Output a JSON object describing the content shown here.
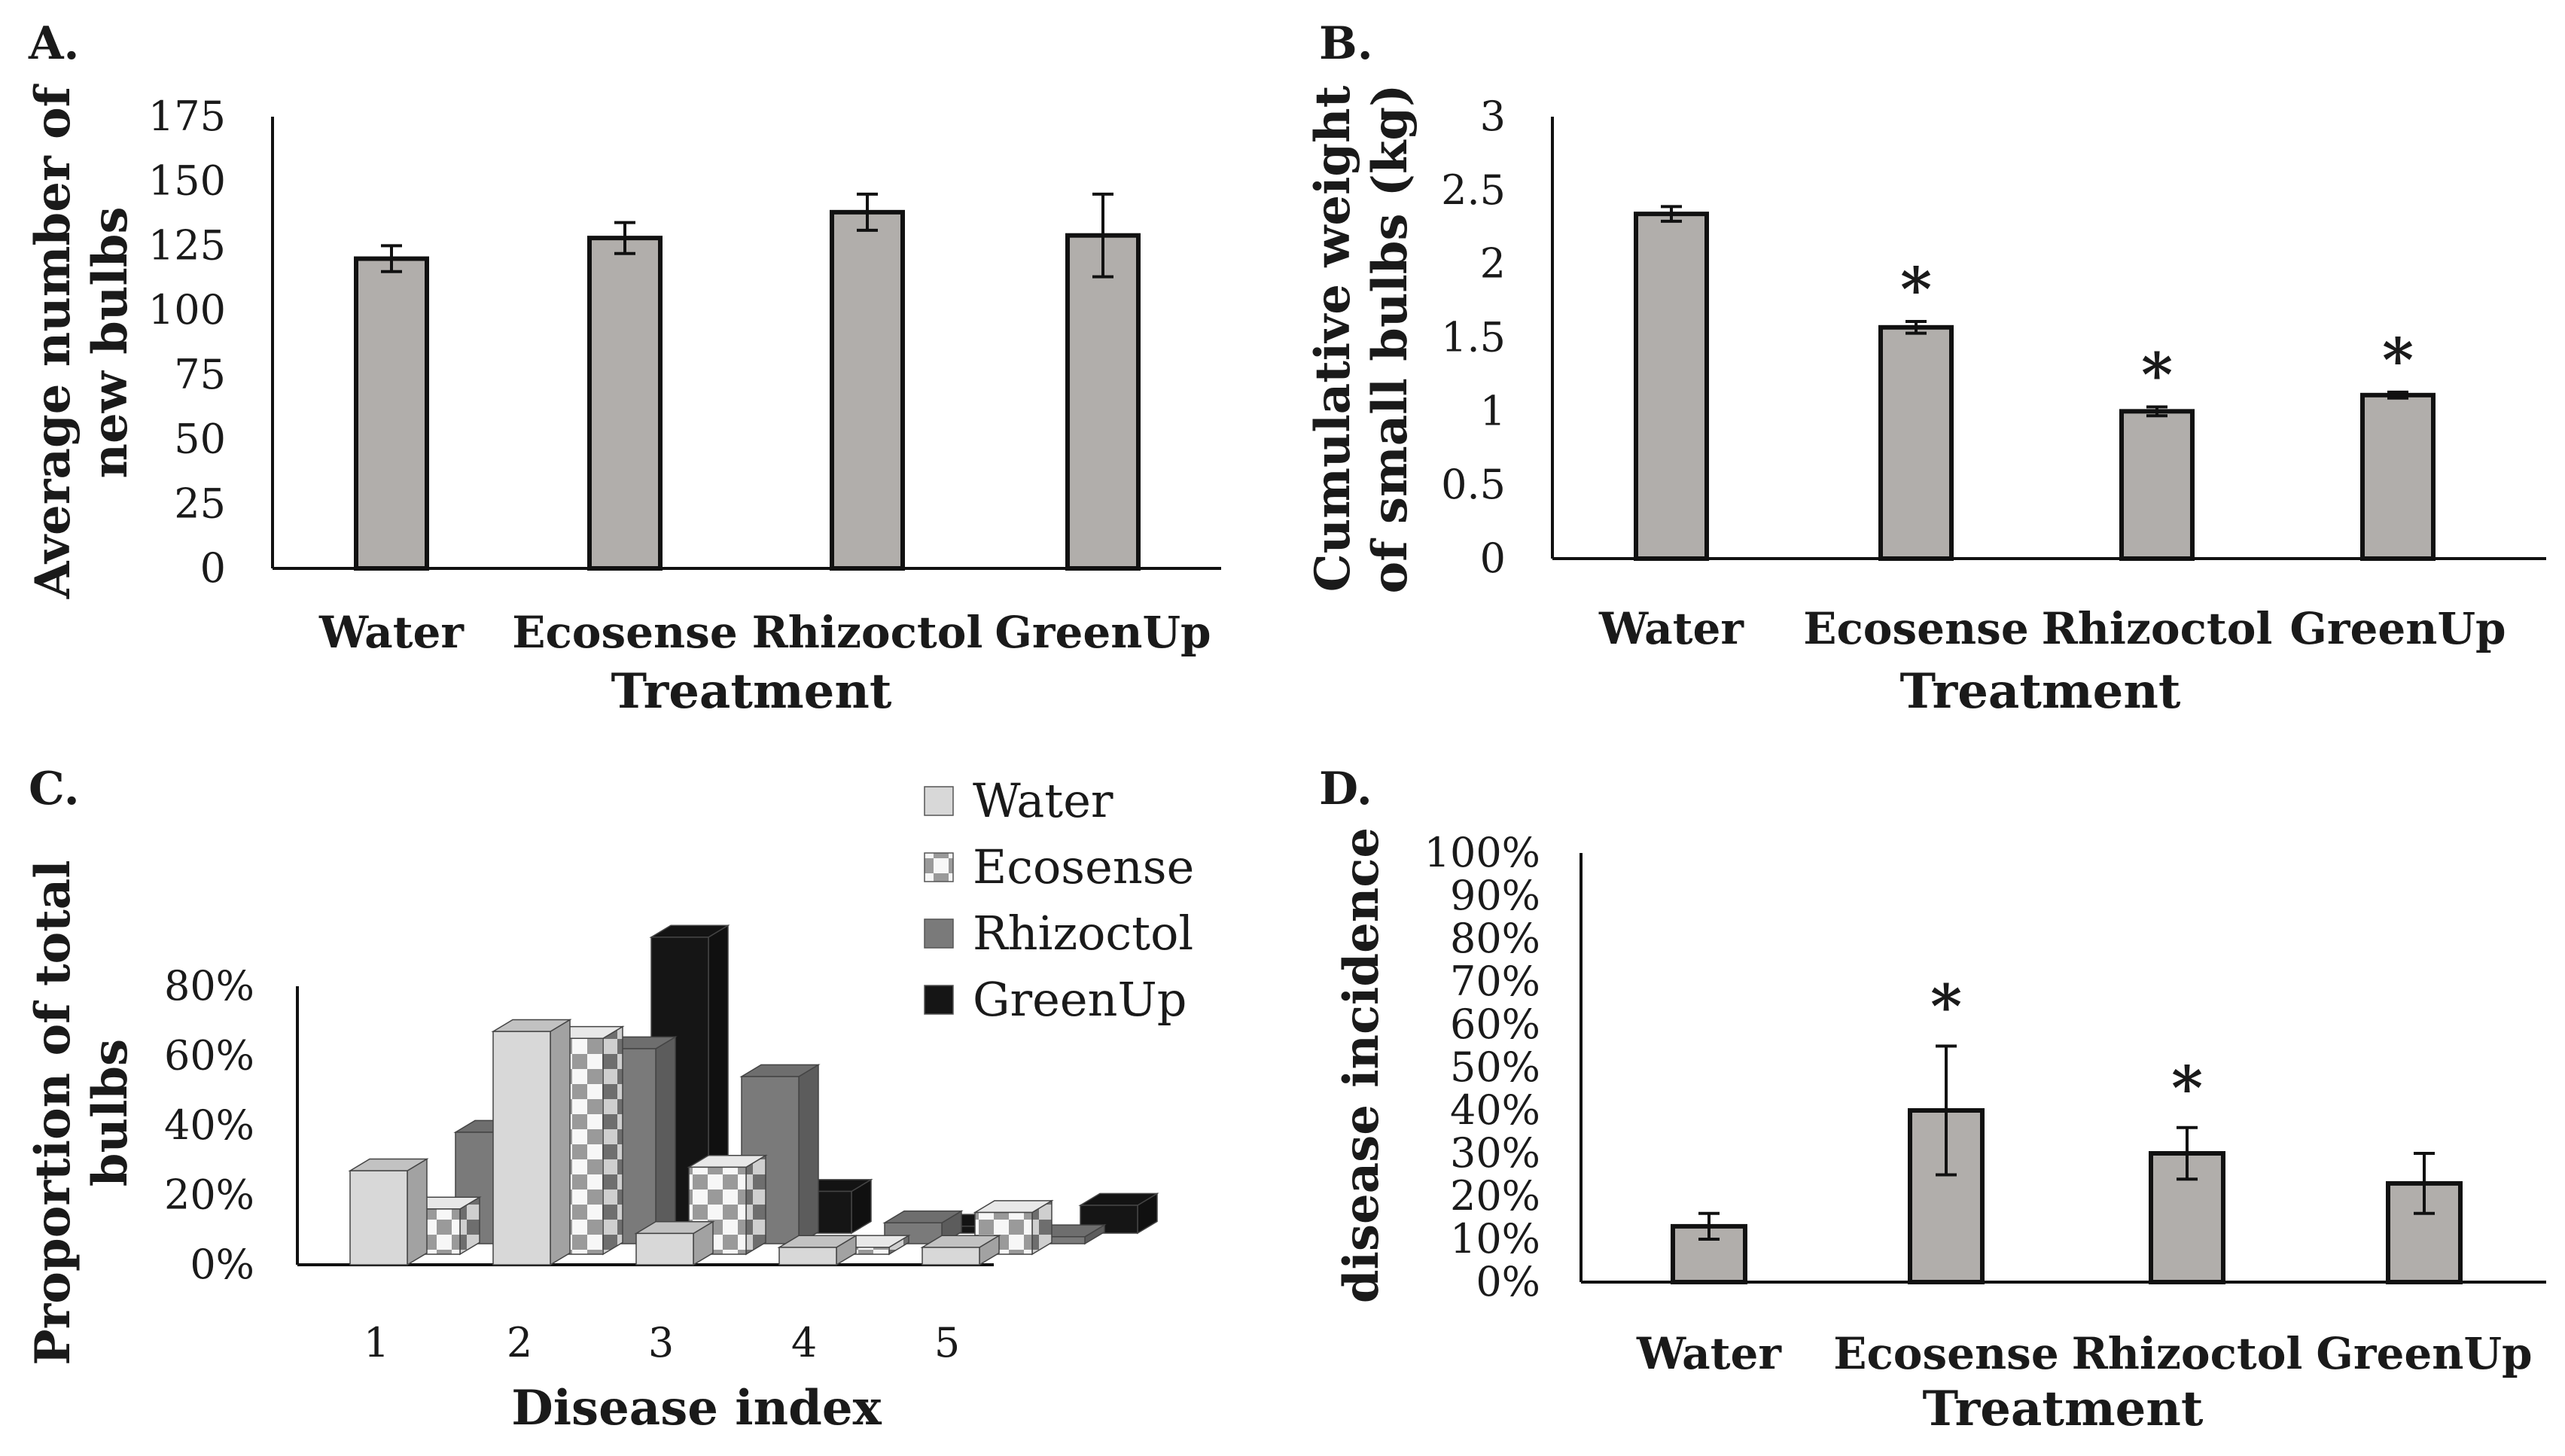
{
  "bar_fill": "#b1aeab",
  "bar_stroke": "#111111",
  "chart_data": [
    {
      "panel": "A.",
      "type": "bar",
      "title": "",
      "categories": [
        "Water",
        "Ecosense",
        "Rhizoctol",
        "GreenUp"
      ],
      "values": [
        120,
        128,
        138,
        129
      ],
      "errors": [
        5,
        6,
        7,
        16
      ],
      "significant": [
        false,
        false,
        false,
        false
      ],
      "xlabel": "Treatment",
      "ylabel_lines": [
        "Average number of",
        "new bulbs"
      ],
      "ylim": [
        0,
        175
      ],
      "yticks": [
        "0",
        "25",
        "50",
        "75",
        "100",
        "125",
        "150",
        "175"
      ],
      "grid": false,
      "legend": "none"
    },
    {
      "panel": "B.",
      "type": "bar",
      "title": "",
      "categories": [
        "Water",
        "Ecosense",
        "Rhizoctol",
        "GreenUp"
      ],
      "values": [
        2.34,
        1.57,
        1.0,
        1.11
      ],
      "errors": [
        0.05,
        0.04,
        0.03,
        0.02
      ],
      "significant": [
        false,
        true,
        true,
        true
      ],
      "star_label": "*",
      "xlabel": "Treatment",
      "ylabel_lines": [
        "Cumulative weight",
        "of small bulbs (kg)"
      ],
      "ylim": [
        0,
        3
      ],
      "yticks": [
        "0",
        "0.5",
        "1",
        "1.5",
        "2",
        "2.5",
        "3"
      ],
      "grid": false,
      "legend": "none"
    },
    {
      "panel": "C.",
      "type": "bar3d",
      "title": "",
      "categories": [
        "1",
        "2",
        "3",
        "4",
        "5"
      ],
      "series": [
        {
          "name": "Water",
          "values": [
            27,
            67,
            9,
            5,
            5
          ],
          "color": "#d8d8d8",
          "pattern": "solid"
        },
        {
          "name": "Ecosense",
          "values": [
            13,
            62,
            25,
            2,
            12
          ],
          "color": "#f4f4f4",
          "pattern": "checker"
        },
        {
          "name": "Rhizoctol",
          "values": [
            32,
            56,
            48,
            6,
            2
          ],
          "color": "#7a7a7a",
          "pattern": "solid"
        },
        {
          "name": "GreenUp",
          "values": [
            0,
            85,
            12,
            2,
            8
          ],
          "color": "#151515",
          "pattern": "solid"
        }
      ],
      "xlabel": "Disease index",
      "ylabel_lines": [
        "Proportion of total",
        "bulbs"
      ],
      "ylim": [
        0,
        80
      ],
      "yticks": [
        "0%",
        "20%",
        "40%",
        "60%",
        "80%"
      ],
      "grid": false,
      "legend": "top-right"
    },
    {
      "panel": "D.",
      "type": "bar",
      "title": "",
      "categories": [
        "Water",
        "Ecosense",
        "Rhizoctol",
        "GreenUp"
      ],
      "values": [
        13,
        40,
        30,
        23
      ],
      "errors": [
        3,
        15,
        6,
        7
      ],
      "significant": [
        false,
        true,
        true,
        false
      ],
      "star_label": "*",
      "xlabel": "Treatment",
      "ylabel_lines": [
        "disease incidence"
      ],
      "ylim": [
        0,
        100
      ],
      "yticks": [
        "0%",
        "10%",
        "20%",
        "30%",
        "40%",
        "50%",
        "60%",
        "70%",
        "80%",
        "90%",
        "100%"
      ],
      "grid": false,
      "legend": "none"
    }
  ]
}
